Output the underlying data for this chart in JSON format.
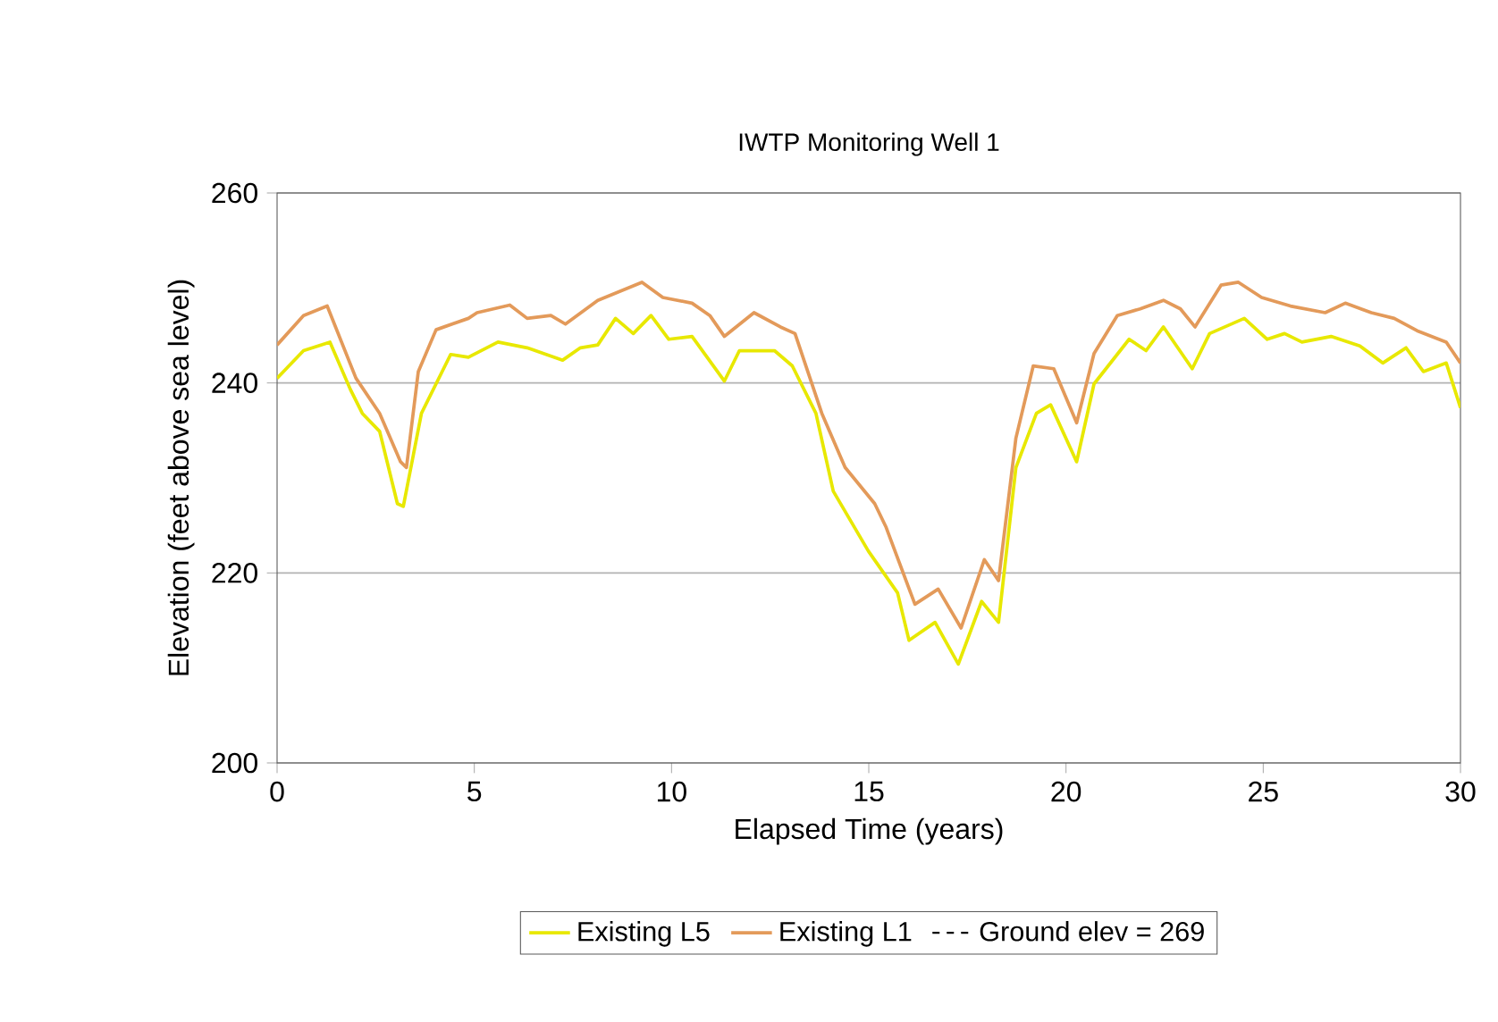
{
  "chart_data": {
    "type": "line",
    "title": "IWTP Monitoring Well 1",
    "xlabel": "Elapsed Time (years)",
    "ylabel": "Elevation (feet above sea level)",
    "xlim": [
      0,
      30
    ],
    "ylim": [
      200,
      260
    ],
    "xticks": [
      0,
      5,
      10,
      15,
      20,
      25,
      30
    ],
    "yticks": [
      200,
      220,
      240,
      260
    ],
    "grid": "y",
    "legend": "bottom",
    "marker": "none",
    "series": [
      {
        "name": "Existing L5",
        "color": "#e8e800",
        "line_style": "solid",
        "x": [
          0,
          0.67,
          1.34,
          1.86,
          2.16,
          2.6,
          3.05,
          3.2,
          3.66,
          4.4,
          4.85,
          5.6,
          6.34,
          7.24,
          7.69,
          8.13,
          8.58,
          9.03,
          9.48,
          9.93,
          10.52,
          11.34,
          11.72,
          12.61,
          13.06,
          13.66,
          14.1,
          14.99,
          15.73,
          16.02,
          16.68,
          17.27,
          17.86,
          18.29,
          18.73,
          19.25,
          19.61,
          20.27,
          20.71,
          21.6,
          22.03,
          22.47,
          23.2,
          23.64,
          24.52,
          25.1,
          25.54,
          25.98,
          26.72,
          27.45,
          28.03,
          28.62,
          29.06,
          29.64,
          30
        ],
        "values": [
          240.5,
          243.4,
          244.3,
          239.3,
          236.8,
          234.9,
          227.3,
          227.0,
          236.8,
          243.0,
          242.7,
          244.3,
          243.7,
          242.4,
          243.7,
          244.0,
          246.8,
          245.2,
          247.1,
          244.6,
          244.9,
          240.2,
          243.4,
          243.4,
          241.8,
          236.8,
          228.6,
          222.3,
          217.9,
          212.9,
          214.8,
          210.4,
          217.0,
          214.8,
          231.1,
          236.8,
          237.7,
          231.7,
          239.9,
          244.6,
          243.4,
          245.9,
          241.5,
          245.2,
          246.8,
          244.6,
          245.2,
          244.3,
          244.9,
          243.9,
          242.1,
          243.7,
          241.2,
          242.1,
          237.4
        ]
      },
      {
        "name": "Existing L1",
        "color": "#e39a5a",
        "line_style": "solid",
        "x": [
          0,
          0.67,
          1.27,
          2.0,
          2.6,
          3.13,
          3.28,
          3.58,
          4.03,
          4.85,
          5.07,
          5.9,
          6.34,
          6.94,
          7.31,
          8.13,
          9.25,
          9.78,
          10.52,
          10.97,
          11.34,
          12.09,
          12.76,
          13.13,
          13.81,
          14.4,
          15.15,
          15.44,
          16.17,
          16.76,
          17.34,
          17.93,
          18.29,
          18.73,
          19.17,
          19.69,
          20.27,
          20.71,
          21.3,
          21.88,
          22.47,
          22.9,
          23.27,
          23.93,
          24.37,
          24.96,
          25.69,
          26.57,
          27.08,
          27.74,
          28.32,
          28.9,
          29.64,
          30
        ],
        "values": [
          244.0,
          247.1,
          248.1,
          240.5,
          236.8,
          231.7,
          231.1,
          241.2,
          245.6,
          246.8,
          247.4,
          248.2,
          246.8,
          247.1,
          246.2,
          248.7,
          250.6,
          249.0,
          248.4,
          247.1,
          244.9,
          247.4,
          245.9,
          245.2,
          236.8,
          231.1,
          227.3,
          224.8,
          216.7,
          218.3,
          214.2,
          221.4,
          219.2,
          234.2,
          241.8,
          241.5,
          235.8,
          243.1,
          247.1,
          247.8,
          248.7,
          247.8,
          245.9,
          250.3,
          250.6,
          249.0,
          248.1,
          247.4,
          248.4,
          247.4,
          246.8,
          245.5,
          244.3,
          242.1
        ]
      },
      {
        "name": "Ground elev = 269",
        "color": "#000000",
        "line_style": "dashed"
      }
    ]
  }
}
